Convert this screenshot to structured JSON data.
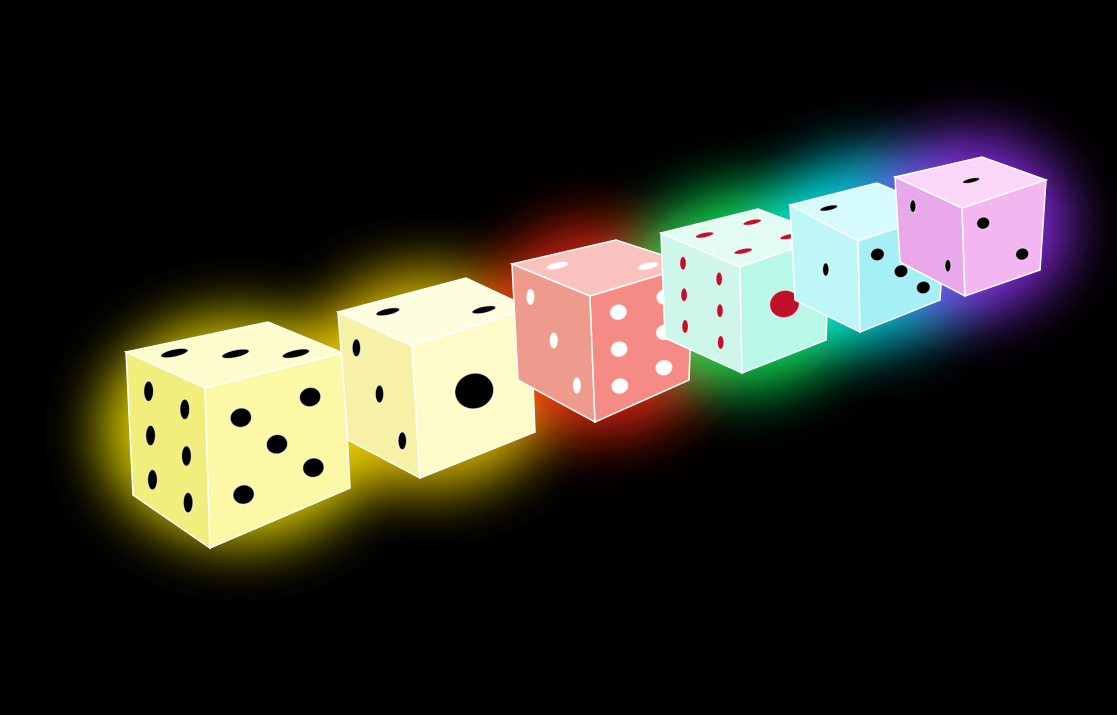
{
  "background": "#000000",
  "dice": [
    {
      "name": "yellow-die",
      "glow": "#ffee00",
      "face": "#fbf9a6",
      "top": "#fdfccd",
      "side": "#f2ee7e",
      "pip": "#000000",
      "front_face_value": 5,
      "top_face_value": 3,
      "side_face_value": 6
    },
    {
      "name": "pale-yellow-die",
      "glow": "#ffd800",
      "face": "#fffbc8",
      "top": "#fffde0",
      "side": "#f7f1a8",
      "pip": "#000000",
      "front_face_value": 1,
      "top_face_value": 2,
      "side_face_value": 3
    },
    {
      "name": "red-die",
      "glow": "#ff2a10",
      "face": "#f48b84",
      "top": "#fac2be",
      "side": "#ee9a8c",
      "pip": "#ffffff",
      "front_face_value": 6,
      "top_face_value": 2,
      "side_face_value": 3
    },
    {
      "name": "green-die",
      "glow": "#10ff60",
      "face": "#b9f7e6",
      "top": "#e2fcf3",
      "side": "#cff6ea",
      "pip": "#c0102a",
      "front_face_value": 1,
      "top_face_value": 4,
      "side_face_value": 6
    },
    {
      "name": "cyan-die",
      "glow": "#00f0ff",
      "face": "#a5f0f6",
      "top": "#d5fbfd",
      "side": "#bff6f8",
      "pip": "#000000",
      "front_face_value": 3,
      "top_face_value": 2,
      "side_face_value": 1
    },
    {
      "name": "violet-die",
      "glow": "#9a30ff",
      "face": "#f3b6f0",
      "top": "#fad7f8",
      "side": "#e8a8ea",
      "pip": "#000000",
      "front_face_value": 2,
      "top_face_value": 1,
      "side_face_value": 2
    }
  ]
}
